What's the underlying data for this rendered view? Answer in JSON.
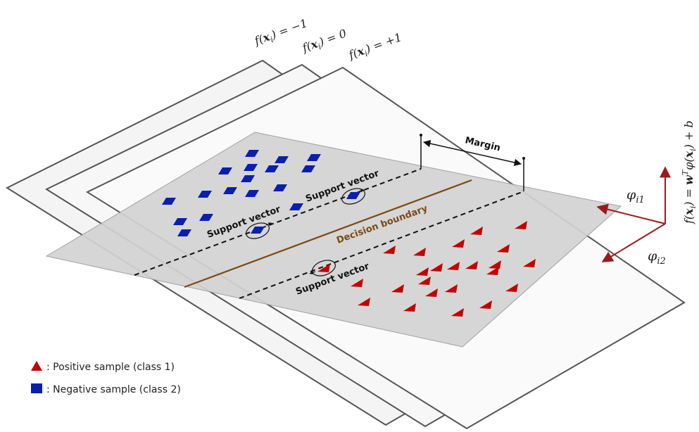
{
  "labels": {
    "margin": "Margin",
    "decision_boundary": "Decision boundary",
    "support_vector": "Support vector",
    "plane_minus": "f(x_i) = -1",
    "plane_zero": "f(x_i) = 0",
    "plane_plus": "f(x_i) = +1",
    "phi_i1": "φ_i1",
    "phi_i2": "φ_i2",
    "axis_formula": "f(x_i) = w^T φ(x_i) + b"
  },
  "legend": {
    "positive": ": Positive sample (class 1)",
    "negative": ": Negative sample (class 2)"
  },
  "colors": {
    "positive": "#c40000",
    "negative": "#0a1fb0",
    "boundary": "#7a4a12",
    "axis": "#9a1a1a",
    "frame": "#555555",
    "plane_fill": "#d3d3d3"
  },
  "samples": {
    "positive_count": 24,
    "negative_count": 20
  }
}
